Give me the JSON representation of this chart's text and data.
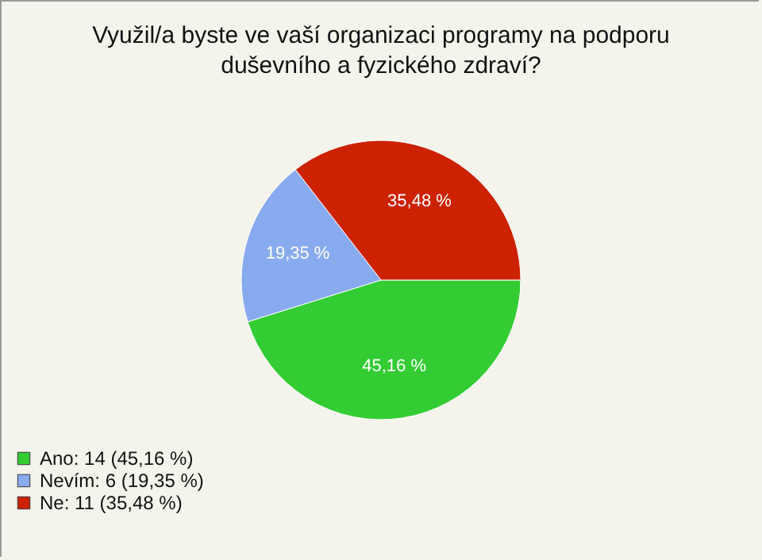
{
  "chart_data": {
    "type": "pie",
    "title": "Využil/a byste ve vaší organizaci programy na podporu duševního a fyzického zdraví?",
    "categories": [
      "Ano: 14 (45,16 %)",
      "Nevím: 6 (19,35 %)",
      "Ne: 11 (35,48 %)"
    ],
    "values": [
      45.16,
      19.35,
      35.48
    ],
    "value_labels": [
      "45,16 %",
      "19,35 %",
      "35,48 %"
    ],
    "colors": [
      "#33cc33",
      "#88aaee",
      "#cc2200"
    ],
    "legend": "bottom left"
  }
}
